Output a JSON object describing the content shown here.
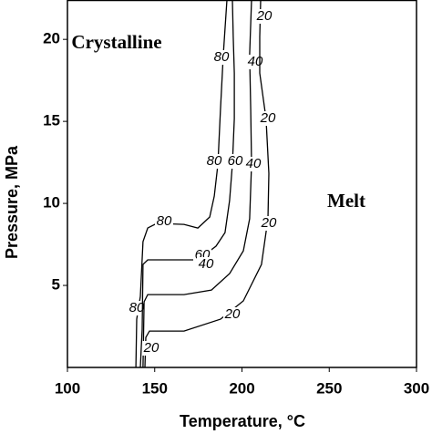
{
  "chart_data": {
    "type": "contour",
    "x_label": "Temperature, °C",
    "y_label": "Pressure, MPa",
    "annotations": [
      "Crystalline",
      "Melt"
    ],
    "xlim": [
      100,
      300
    ],
    "xticks": [
      100,
      150,
      200,
      250,
      300
    ],
    "ylim": [
      0,
      22.4
    ],
    "yticks": [
      5,
      10,
      15,
      20
    ],
    "color": "#000000",
    "series": [
      {
        "level": 80,
        "x": [
          139.2,
          139.7,
          141.8,
          143.3,
          146.0,
          151.2,
          166.8,
          174.7,
          181.5,
          184.1,
          186.2,
          187.7,
          189.3,
          191.4
        ],
        "y": [
          0,
          2.94,
          4.33,
          7.67,
          8.5,
          8.78,
          8.72,
          8.5,
          9.17,
          10.44,
          12.39,
          15.72,
          19.06,
          22.4
        ]
      },
      {
        "level": 60,
        "x": [
          141.8,
          142.3,
          142.8,
          143.3,
          146.0,
          161.6,
          174.7,
          185.1,
          190.3,
          192.9,
          194.5,
          195.6,
          195.6,
          195.0,
          194.5
        ],
        "y": [
          0,
          1.22,
          2.33,
          6.28,
          6.56,
          6.56,
          6.56,
          7.39,
          8.22,
          10.17,
          12.39,
          15.17,
          17.94,
          20.17,
          22.4
        ]
      },
      {
        "level": 40,
        "x": [
          143.3,
          143.9,
          146.0,
          166.8,
          182.5,
          192.9,
          200.8,
          204.4,
          205.5,
          205.0,
          204.4,
          205.5
        ],
        "y": [
          0,
          4.0,
          4.44,
          4.44,
          4.72,
          5.72,
          7.11,
          9.06,
          12.39,
          15.72,
          19.06,
          22.4
        ]
      },
      {
        "level": 20,
        "x": [
          144.4,
          144.9,
          147.0,
          166.8,
          187.7,
          200.8,
          211.2,
          214.9,
          215.4,
          213.8,
          210.2,
          210.2,
          210.7
        ],
        "y": [
          0,
          1.83,
          2.22,
          2.22,
          2.94,
          4.06,
          6.28,
          9.06,
          11.83,
          15.17,
          17.94,
          20.17,
          22.4
        ]
      }
    ]
  }
}
